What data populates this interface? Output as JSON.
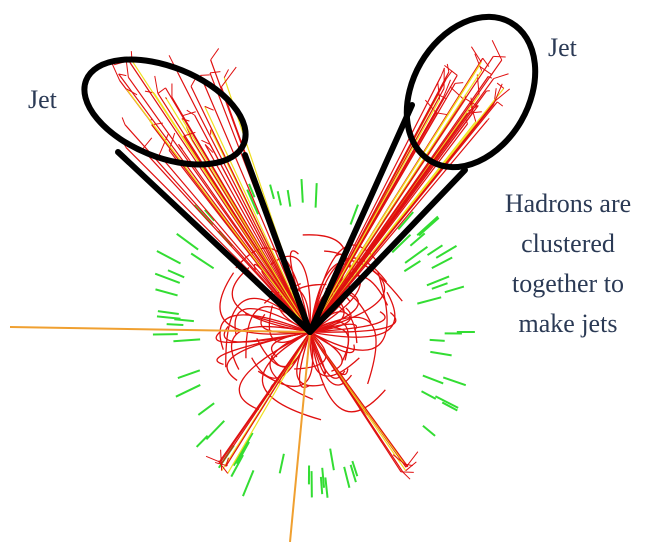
{
  "labels": {
    "jet_left": "Jet",
    "jet_right": "Jet"
  },
  "caption": [
    "Hadrons are",
    "clustered",
    "together to",
    "make jets"
  ]
}
